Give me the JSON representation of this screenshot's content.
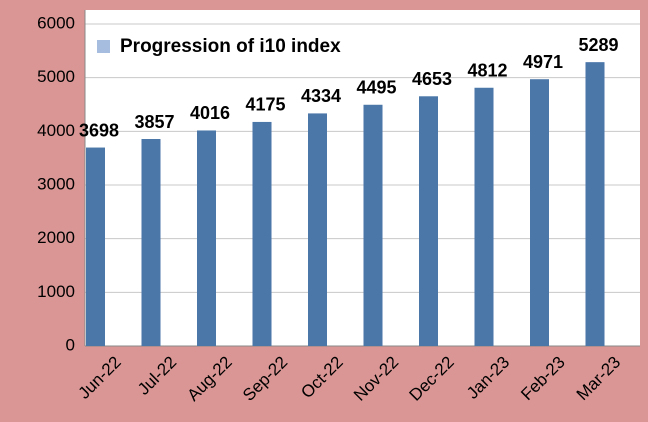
{
  "chart_data": {
    "type": "bar",
    "categories": [
      "Jun-22",
      "Jul-22",
      "Aug-22",
      "Sep-22",
      "Oct-22",
      "Nov-22",
      "Dec-22",
      "Jan-23",
      "Feb-23",
      "Mar-23"
    ],
    "series": [
      {
        "name": "Progression of i10 index",
        "color": "#4a76a8",
        "values": [
          3698,
          3857,
          4016,
          4175,
          4334,
          4495,
          4653,
          4812,
          4971,
          5289
        ]
      }
    ],
    "legend_color": "#a7bde0",
    "ylim": [
      0,
      6000
    ],
    "yticks": [
      0,
      1000,
      2000,
      3000,
      4000,
      5000,
      6000
    ],
    "grid": true
  }
}
